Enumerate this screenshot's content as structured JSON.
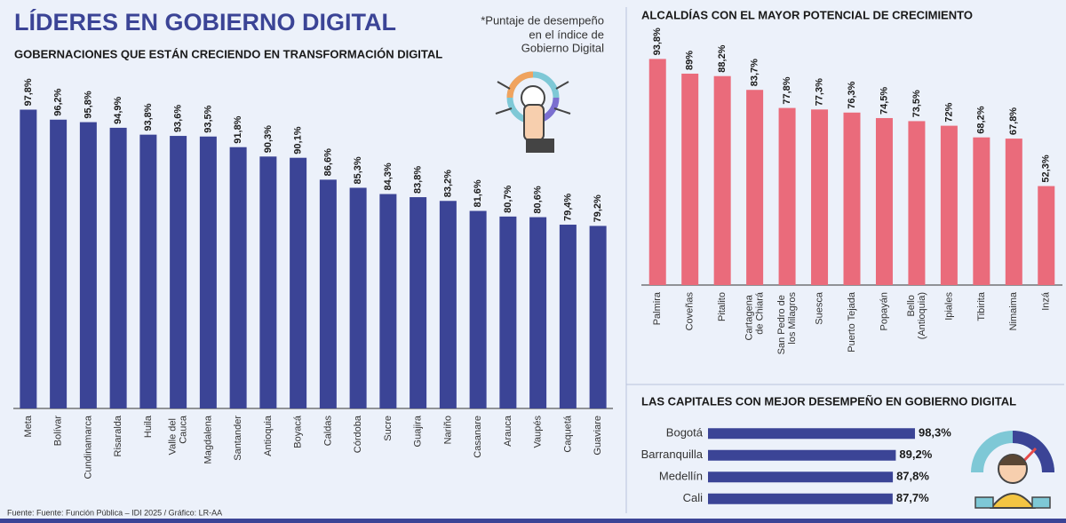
{
  "title": "LÍDERES EN GOBIERNO DIGITAL",
  "note": [
    "*Puntaje de desempeño",
    "en el índice de",
    "Gobierno Digital"
  ],
  "source": "Fuente: Fuente: Función Pública – IDI 2025 / Gráfico: LR-AA",
  "chart_data": [
    {
      "type": "bar",
      "title": "GOBERNACIONES QUE ESTÁN CRECIENDO EN TRANSFORMACIÓN DIGITAL",
      "categories": [
        "Meta",
        "Bolívar",
        "Cundinamarca",
        "Risaralda",
        "Huila",
        "Valle del Cauca",
        "Magdalena",
        "Santander",
        "Antioquia",
        "Boyacá",
        "Caldas",
        "Córdoba",
        "Sucre",
        "Guajira",
        "Nariño",
        "Casanare",
        "Arauca",
        "Vaupés",
        "Caquetá",
        "Guaviare"
      ],
      "values": [
        97.8,
        96.2,
        95.8,
        94.9,
        93.8,
        93.6,
        93.5,
        91.8,
        90.3,
        90.1,
        86.6,
        85.3,
        84.3,
        83.8,
        83.2,
        81.6,
        80.7,
        80.6,
        79.4,
        79.2
      ],
      "value_labels": [
        "97,8%",
        "96,2%",
        "95,8%",
        "94,9%",
        "93,8%",
        "93,6%",
        "93,5%",
        "91,8%",
        "90,3%",
        "90,1%",
        "86,6%",
        "85,3%",
        "84,3%",
        "83,8%",
        "83,2%",
        "81,6%",
        "80,7%",
        "80,6%",
        "79,4%",
        "79,2%"
      ],
      "color": "#3b4496",
      "ylim": [
        50,
        100
      ]
    },
    {
      "type": "bar",
      "title": "ALCALDÍAS CON EL MAYOR POTENCIAL DE CRECIMIENTO",
      "categories": [
        "Palmira",
        "Coveñas",
        "Pitalito",
        "Cartagena de Chiará",
        "San Pedro de los Milagros",
        "Suesca",
        "Puerto Tejada",
        "Popayán",
        "Bello (Antioquia)",
        "Ipiales",
        "Tibirita",
        "Nimaima",
        "Inzá"
      ],
      "values": [
        93.8,
        89,
        88.2,
        83.7,
        77.8,
        77.3,
        76.3,
        74.5,
        73.5,
        72,
        68.2,
        67.8,
        52.3
      ],
      "value_labels": [
        "93,8%",
        "89%",
        "88,2%",
        "83,7%",
        "77,8%",
        "77,3%",
        "76,3%",
        "74,5%",
        "73,5%",
        "72%",
        "68,2%",
        "67,8%",
        "52,3%"
      ],
      "color": "#ea6b7b",
      "ylim": [
        20,
        100
      ]
    },
    {
      "type": "barh",
      "title": "LAS CAPITALES CON MEJOR DESEMPEÑO EN GOBIERNO DIGITAL",
      "categories": [
        "Bogotá",
        "Barranquilla",
        "Medellín",
        "Cali"
      ],
      "values": [
        98.3,
        89.2,
        87.8,
        87.7
      ],
      "value_labels": [
        "98,3%",
        "89,2%",
        "87,8%",
        "87,7%"
      ],
      "color": "#3b4496",
      "xlim": [
        0,
        100
      ]
    }
  ]
}
